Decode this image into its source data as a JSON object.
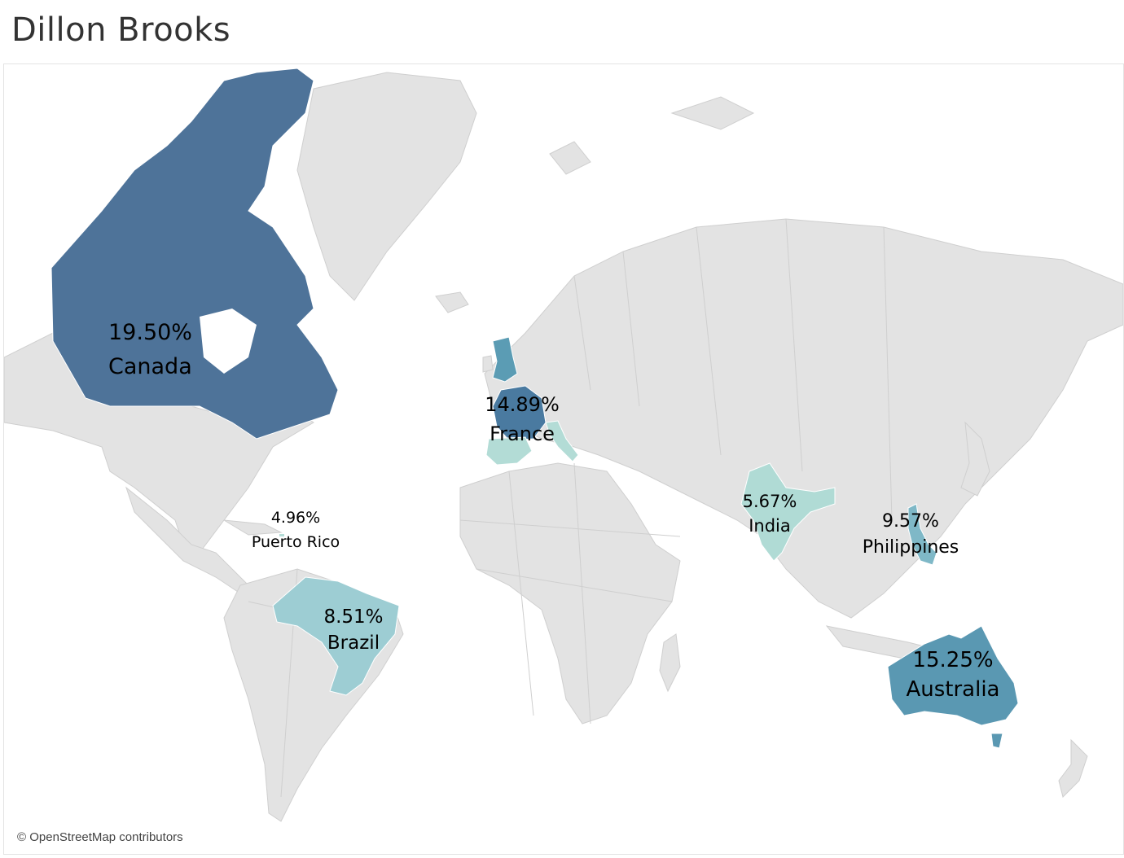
{
  "title": "Dillon Brooks",
  "attribution": "© OpenStreetMap contributors",
  "colors": {
    "land": "#e3e3e3",
    "border": "#cfcfcf",
    "canada": "#4e7399",
    "france": "#4a7aa0",
    "uk": "#5b9cb4",
    "australia": "#5a98b2",
    "philippines": "#7fb8c7",
    "brazil": "#9dcdd3",
    "spain_italy": "#b3dcd6",
    "india": "#b0dbd5"
  },
  "map": {
    "type": "choropleth",
    "regions": [
      {
        "name": "Canada",
        "value": "19.50%"
      },
      {
        "name": "Australia",
        "value": "15.25%"
      },
      {
        "name": "France",
        "value": "14.89%"
      },
      {
        "name": "Philippines",
        "value": "9.57%"
      },
      {
        "name": "Brazil",
        "value": "8.51%"
      },
      {
        "name": "India",
        "value": "5.67%"
      },
      {
        "name": "Puerto Rico",
        "value": "4.96%"
      }
    ]
  }
}
